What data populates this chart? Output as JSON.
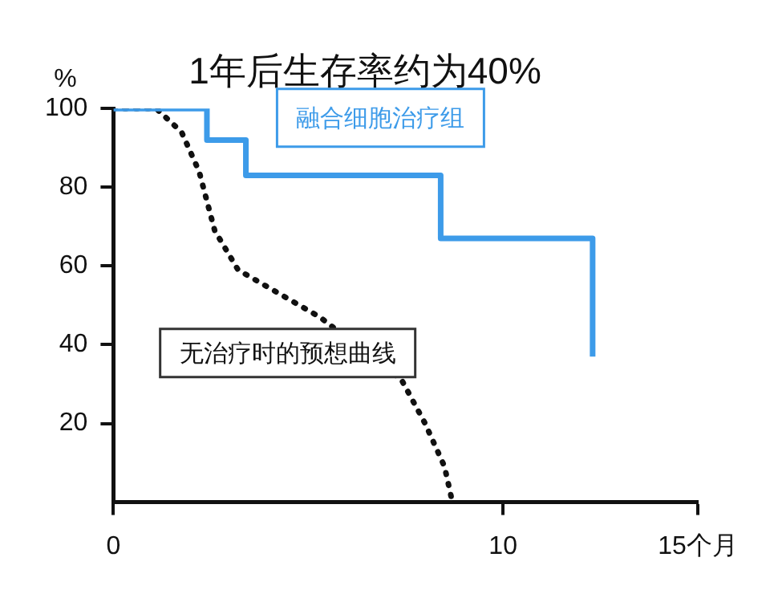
{
  "chart_data": {
    "type": "step",
    "title": "1年后生存率约为40%",
    "ylabel": "%",
    "xlim": [
      0,
      15
    ],
    "xticks": [
      0,
      10,
      {
        "value": 15,
        "label": "15个月"
      }
    ],
    "ylim": [
      0,
      100
    ],
    "yticks": [
      20,
      40,
      60,
      80,
      100
    ],
    "grid": false,
    "legend": false,
    "marker": "none",
    "series": [
      {
        "name": "融合细胞治疗组",
        "color": "#3d9be9",
        "line_style": "solid",
        "x": [
          0,
          2.4,
          3.4,
          8.4,
          12.3
        ],
        "values": [
          100,
          92,
          83,
          67,
          37
        ]
      },
      {
        "name": "无治疗时的预想曲线",
        "type": "line",
        "color": "#111111",
        "line_style": "dotted",
        "x": [
          0,
          1.1,
          1.75,
          2.2,
          2.6,
          3.2,
          4.25,
          5.3,
          7.4,
          8.0,
          8.5,
          8.7
        ],
        "values": [
          100,
          100,
          94,
          84,
          69,
          59,
          53,
          47,
          31,
          20,
          9,
          0
        ]
      }
    ]
  }
}
